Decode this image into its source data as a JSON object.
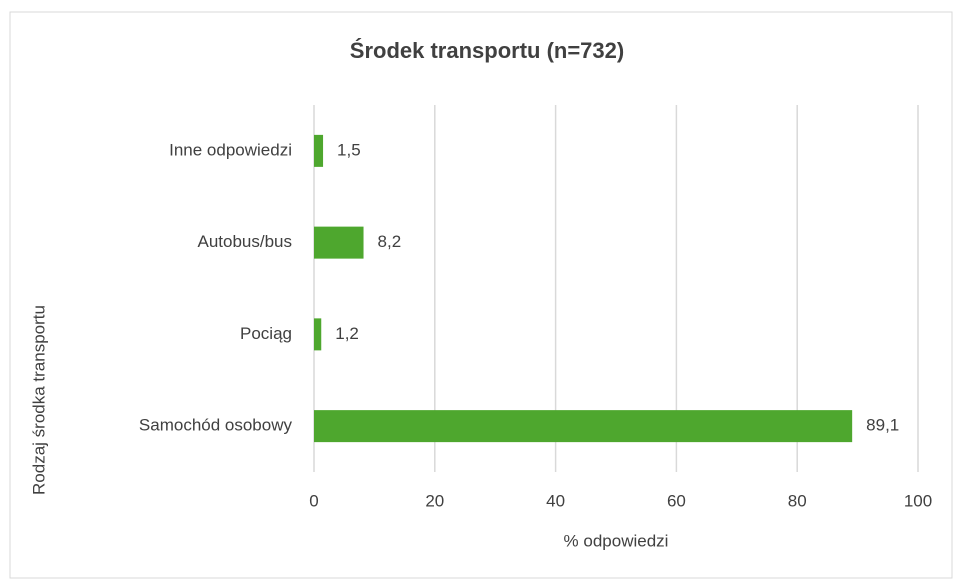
{
  "chart_data": {
    "type": "bar",
    "orientation": "horizontal",
    "title": "Środek transportu (n=732)",
    "x_label": "% odpowiedzi",
    "y_label": "Rodzaj środka transportu",
    "categories": [
      "Inne odpowiedzi",
      "Autobus/bus",
      "Pociąg",
      "Samochód osobowy"
    ],
    "values": [
      1.5,
      8.2,
      1.2,
      89.1
    ],
    "value_labels": [
      "1,5",
      "8,2",
      "1,2",
      "89,1"
    ],
    "color": "#4ea72e",
    "xlim": [
      0,
      100
    ],
    "xticks": [
      0,
      20,
      40,
      60,
      80,
      100
    ],
    "grid": true
  }
}
